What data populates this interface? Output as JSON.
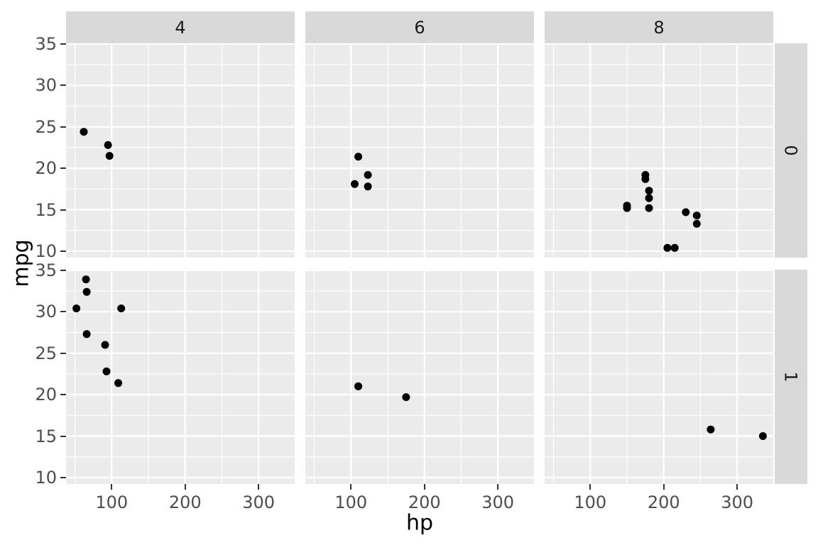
{
  "colors": {
    "panel_bg": "#EBEBEB",
    "strip_bg": "#D9D9D9",
    "grid_line": "#FFFFFF",
    "point": "#000000",
    "tick_text": "#4D4D4D",
    "strip_text": "#1A1A1A",
    "axis_title_text": "#000000",
    "tick_mark": "#333333",
    "background": "#FFFFFF"
  },
  "chart_data": {
    "type": "scatter",
    "title": "",
    "xlabel": "hp",
    "ylabel": "mpg",
    "legend": "none",
    "grid": true,
    "xlim": [
      37.85,
      349.15
    ],
    "ylim": [
      9.225,
      35.075
    ],
    "x_major_ticks": [
      100,
      200,
      300
    ],
    "x_minor_ticks": [
      50,
      150,
      250,
      350
    ],
    "y_major_ticks": [
      10,
      15,
      20,
      25,
      30,
      35
    ],
    "y_minor_ticks": [
      12.5,
      17.5,
      22.5,
      27.5,
      32.5
    ],
    "facet_col_labels": [
      "4",
      "6",
      "8"
    ],
    "facet_row_labels": [
      "0",
      "1"
    ],
    "facets": [
      {
        "col": "4",
        "row": "0",
        "points": [
          [
            62,
            24.4
          ],
          [
            95,
            22.8
          ],
          [
            97,
            21.5
          ]
        ]
      },
      {
        "col": "6",
        "row": "0",
        "points": [
          [
            110,
            21.4
          ],
          [
            105,
            18.1
          ],
          [
            123,
            19.2
          ],
          [
            123,
            17.8
          ]
        ]
      },
      {
        "col": "8",
        "row": "0",
        "points": [
          [
            175,
            18.7
          ],
          [
            245,
            14.3
          ],
          [
            180,
            16.4
          ],
          [
            180,
            17.3
          ],
          [
            180,
            15.2
          ],
          [
            205,
            10.4
          ],
          [
            215,
            10.4
          ],
          [
            230,
            14.7
          ],
          [
            150,
            15.5
          ],
          [
            150,
            15.2
          ],
          [
            245,
            13.3
          ],
          [
            175,
            19.2
          ]
        ]
      },
      {
        "col": "4",
        "row": "1",
        "points": [
          [
            93,
            22.8
          ],
          [
            66,
            32.4
          ],
          [
            52,
            30.4
          ],
          [
            65,
            33.9
          ],
          [
            66,
            27.3
          ],
          [
            91,
            26.0
          ],
          [
            113,
            30.4
          ],
          [
            109,
            21.4
          ]
        ]
      },
      {
        "col": "6",
        "row": "1",
        "points": [
          [
            110,
            21.0
          ],
          [
            110,
            21.0
          ],
          [
            175,
            19.7
          ]
        ]
      },
      {
        "col": "8",
        "row": "1",
        "points": [
          [
            264,
            15.8
          ],
          [
            335,
            15.0
          ]
        ]
      }
    ]
  }
}
